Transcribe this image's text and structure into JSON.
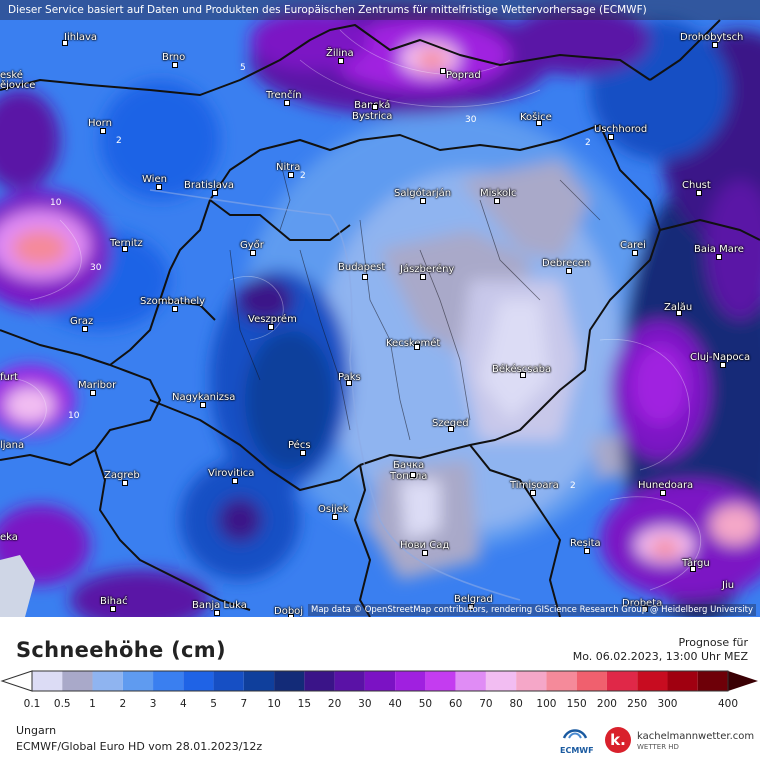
{
  "banner": "Dieser Service basiert auf Daten und Produkten des Europäischen Zentrums für mittelfristige Wettervorhersage (ECMWF)",
  "attribution": "Map data © OpenStreetMap contributors, rendering GIScience Research Group @ Heidelberg University",
  "legend": {
    "title": "Schneehöhe (cm)",
    "forecast_label": "Prognose für",
    "forecast_date": "Mo. 06.02.2023, 13:00 Uhr MEZ",
    "scale": [
      {
        "label": "0.1",
        "color": "#dcdcf5"
      },
      {
        "label": "0.5",
        "color": "#a9a9c9"
      },
      {
        "label": "1",
        "color": "#8fb4f0"
      },
      {
        "label": "2",
        "color": "#5f9bf0"
      },
      {
        "label": "3",
        "color": "#3a7ff0"
      },
      {
        "label": "4",
        "color": "#1f63e6"
      },
      {
        "label": "5",
        "color": "#164fc4"
      },
      {
        "label": "7",
        "color": "#0f3f9c"
      },
      {
        "label": "10",
        "color": "#132b78"
      },
      {
        "label": "15",
        "color": "#3a1488"
      },
      {
        "label": "20",
        "color": "#5a12a6"
      },
      {
        "label": "30",
        "color": "#7b12c4"
      },
      {
        "label": "40",
        "color": "#a020e0"
      },
      {
        "label": "50",
        "color": "#c43cf0"
      },
      {
        "label": "60",
        "color": "#e08cf5"
      },
      {
        "label": "70",
        "color": "#f2bdf2"
      },
      {
        "label": "80",
        "color": "#f5a7c8"
      },
      {
        "label": "100",
        "color": "#f58a9a"
      },
      {
        "label": "150",
        "color": "#f0606e"
      },
      {
        "label": "200",
        "color": "#e02848"
      },
      {
        "label": "250",
        "color": "#c80c20"
      },
      {
        "label": "300",
        "color": "#a00010"
      },
      {
        "label": "400",
        "color": "#6e0008"
      }
    ],
    "region": "Ungarn",
    "model": "ECMWF/Global Euro HD vom  28.01.2023/12z",
    "ecmwf_logo_text": "ECMWF",
    "brand": "kachelmannwetter.com",
    "brand_sub": "WETTER HD"
  },
  "cities": [
    {
      "name": "Jihlava"
    },
    {
      "name": "Brno"
    },
    {
      "name": "Žilina"
    },
    {
      "name": "Poprad"
    },
    {
      "name": "Drohobytsch"
    },
    {
      "name": "Trenčín"
    },
    {
      "name": "Banská Bystrica"
    },
    {
      "name": "Košice"
    },
    {
      "name": "Uschhorod"
    },
    {
      "name": "Horn"
    },
    {
      "name": "Nitra"
    },
    {
      "name": "Wien"
    },
    {
      "name": "Bratislava"
    },
    {
      "name": "Salgótarján"
    },
    {
      "name": "Miskolc"
    },
    {
      "name": "Chust"
    },
    {
      "name": "Ternitz"
    },
    {
      "name": "Győr"
    },
    {
      "name": "Budapest"
    },
    {
      "name": "Jászberény"
    },
    {
      "name": "Debrecen"
    },
    {
      "name": "Carei"
    },
    {
      "name": "Baia Mare"
    },
    {
      "name": "Szombathely"
    },
    {
      "name": "Graz"
    },
    {
      "name": "Veszprém"
    },
    {
      "name": "Kecskemét"
    },
    {
      "name": "Zalău"
    },
    {
      "name": "Cluj-Napoca"
    },
    {
      "name": "Paks"
    },
    {
      "name": "Békéscsaba"
    },
    {
      "name": "Maribor"
    },
    {
      "name": "Nagykanizsa"
    },
    {
      "name": "Szeged"
    },
    {
      "name": "Pécs"
    },
    {
      "name": "Zagreb"
    },
    {
      "name": "Virovitica"
    },
    {
      "name": "Бачка Топола"
    },
    {
      "name": "Timișoara"
    },
    {
      "name": "Hunedoara"
    },
    {
      "name": "Osijek"
    },
    {
      "name": "Нови Сад"
    },
    {
      "name": "Reșita"
    },
    {
      "name": "Târgu"
    },
    {
      "name": "Bihać"
    },
    {
      "name": "Banja Luka"
    },
    {
      "name": "Doboj"
    },
    {
      "name": "Belgrad"
    },
    {
      "name": "Drobeta"
    },
    {
      "name": "ljana"
    },
    {
      "name": "furt"
    },
    {
      "name": "eské"
    },
    {
      "name": "ějovice"
    },
    {
      "name": "eka"
    },
    {
      "name": "Jiu"
    }
  ]
}
